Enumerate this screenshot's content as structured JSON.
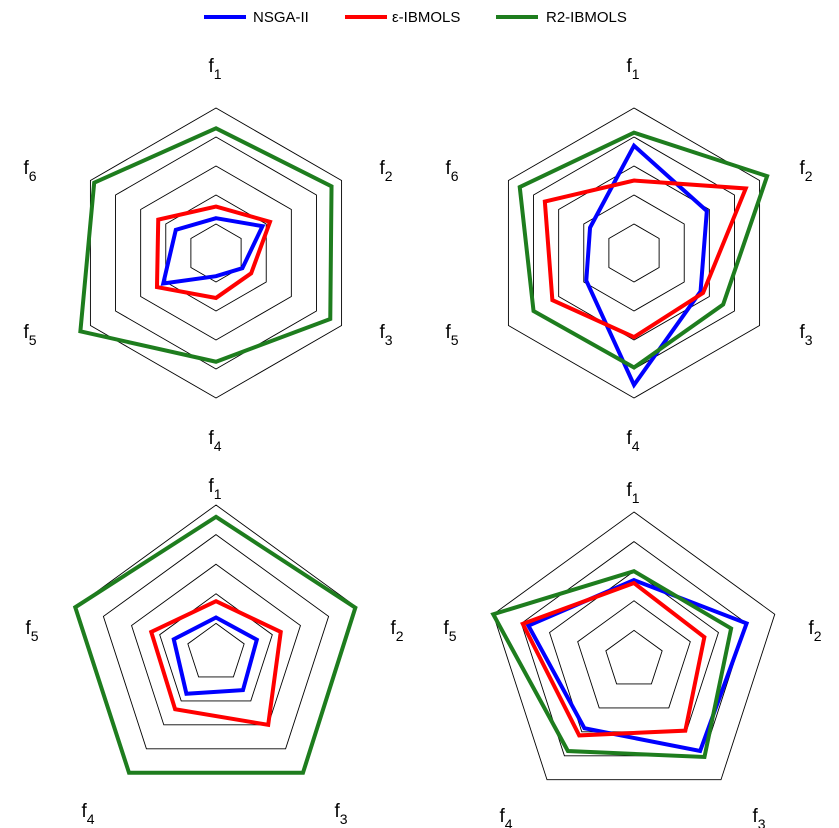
{
  "legend": {
    "items": [
      {
        "label": "NSGA-II",
        "color": "#0000ff"
      },
      {
        "label": "ε-IBMOLS",
        "color": "#ff0000"
      },
      {
        "label": "R2-IBMOLS",
        "color": "#1e7d1e"
      }
    ]
  },
  "chart_data": [
    {
      "type": "radar",
      "axes": [
        "f1",
        "f2",
        "f3",
        "f4",
        "f5",
        "f6"
      ],
      "rmax": 1.0,
      "rings": [
        0.2,
        0.4,
        0.6,
        0.8,
        1.0
      ],
      "series": [
        {
          "name": "NSGA-II",
          "color": "#0000ff",
          "values": [
            0.24,
            0.37,
            0.21,
            0.16,
            0.42,
            0.32
          ]
        },
        {
          "name": "ε-IBMOLS",
          "color": "#ff0000",
          "values": [
            0.32,
            0.43,
            0.28,
            0.31,
            0.47,
            0.46
          ]
        },
        {
          "name": "R2-IBMOLS",
          "color": "#1e7d1e",
          "values": [
            0.86,
            0.92,
            0.91,
            0.75,
            1.08,
            0.97
          ]
        }
      ]
    },
    {
      "type": "radar",
      "axes": [
        "f1",
        "f2",
        "f3",
        "f4",
        "f5",
        "f6"
      ],
      "rmax": 1.0,
      "rings": [
        0.2,
        0.4,
        0.6,
        0.8,
        1.0
      ],
      "series": [
        {
          "name": "NSGA-II",
          "color": "#0000ff",
          "values": [
            0.74,
            0.58,
            0.53,
            0.91,
            0.38,
            0.35
          ]
        },
        {
          "name": "ε-IBMOLS",
          "color": "#ff0000",
          "values": [
            0.5,
            0.89,
            0.55,
            0.58,
            0.65,
            0.71
          ]
        },
        {
          "name": "R2-IBMOLS",
          "color": "#1e7d1e",
          "values": [
            0.83,
            1.06,
            0.71,
            0.79,
            0.8,
            0.91
          ]
        }
      ]
    },
    {
      "type": "radar",
      "axes": [
        "f1",
        "f2",
        "f3",
        "f4",
        "f5"
      ],
      "rmax": 1.0,
      "rings": [
        0.2,
        0.4,
        0.6,
        0.8,
        1.0
      ],
      "series": [
        {
          "name": "NSGA-II",
          "color": "#0000ff",
          "values": [
            0.24,
            0.29,
            0.31,
            0.34,
            0.3
          ]
        },
        {
          "name": "ε-IBMOLS",
          "color": "#ff0000",
          "values": [
            0.35,
            0.46,
            0.6,
            0.47,
            0.46
          ]
        },
        {
          "name": "R2-IBMOLS",
          "color": "#1e7d1e",
          "values": [
            0.92,
            0.99,
            1.0,
            1.0,
            1.0
          ]
        }
      ]
    },
    {
      "type": "radar",
      "axes": [
        "f1",
        "f2",
        "f3",
        "f4",
        "f5"
      ],
      "rmax": 1.0,
      "rings": [
        0.2,
        0.4,
        0.6,
        0.8,
        1.0
      ],
      "series": [
        {
          "name": "NSGA-II",
          "color": "#0000ff",
          "values": [
            0.54,
            0.8,
            0.76,
            0.57,
            0.75
          ]
        },
        {
          "name": "ε-IBMOLS",
          "color": "#ff0000",
          "values": [
            0.52,
            0.5,
            0.59,
            0.63,
            0.79
          ]
        },
        {
          "name": "R2-IBMOLS",
          "color": "#1e7d1e",
          "values": [
            0.6,
            0.69,
            0.81,
            0.76,
            1.0
          ]
        }
      ]
    }
  ]
}
